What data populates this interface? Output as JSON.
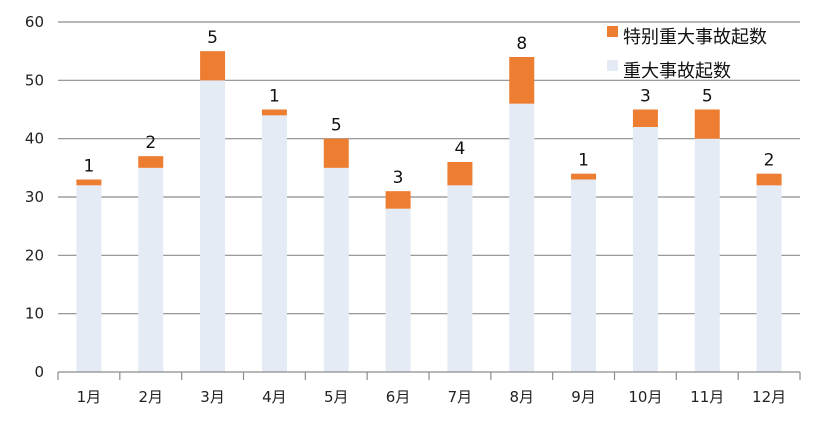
{
  "chart_data": {
    "type": "bar",
    "stacked": true,
    "categories": [
      "1月",
      "2月",
      "3月",
      "4月",
      "5月",
      "6月",
      "7月",
      "8月",
      "9月",
      "10月",
      "11月",
      "12月"
    ],
    "series": [
      {
        "name": "重大事故起数",
        "color": "#e4ebf5",
        "values": [
          32,
          35,
          50,
          44,
          35,
          28,
          32,
          46,
          33,
          42,
          40,
          32
        ]
      },
      {
        "name": "特别重大事故起数",
        "color": "#ed7d31",
        "values": [
          1,
          2,
          5,
          1,
          5,
          3,
          4,
          8,
          1,
          3,
          5,
          2
        ]
      }
    ],
    "data_labels": [
      "1",
      "2",
      "5",
      "1",
      "5",
      "3",
      "4",
      "8",
      "1",
      "3",
      "5",
      "2"
    ],
    "ylim": [
      0,
      60
    ],
    "yticks": [
      0,
      10,
      20,
      30,
      40,
      50,
      60
    ],
    "grid": true,
    "legend_position": "top-right"
  }
}
